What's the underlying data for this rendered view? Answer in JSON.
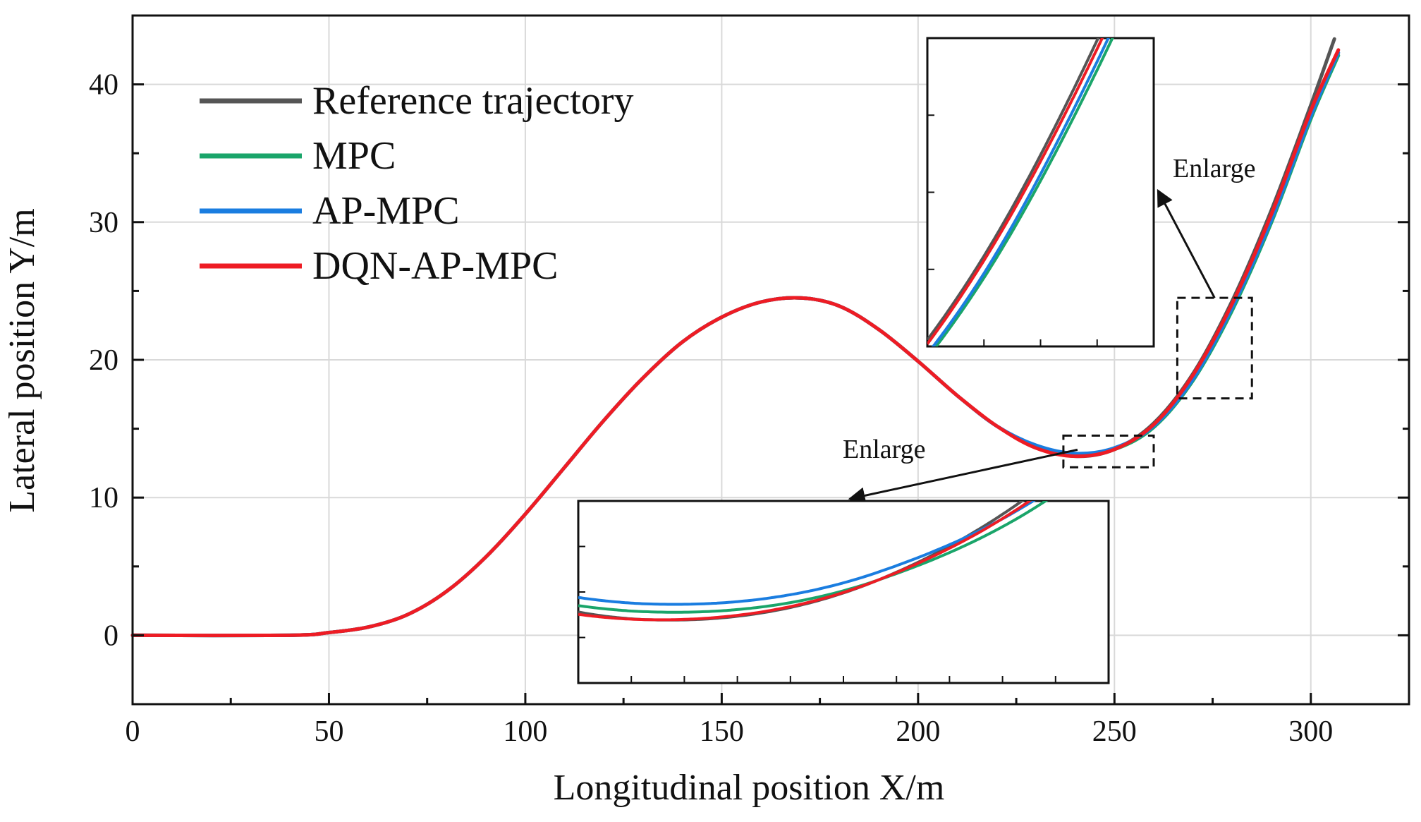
{
  "chart_data": {
    "type": "line",
    "title": "",
    "xlabel": "Longitudinal position X/m",
    "ylabel": "Lateral position Y/m",
    "xlim": [
      0,
      325
    ],
    "ylim": [
      -5,
      45
    ],
    "xticks": [
      0,
      50,
      100,
      150,
      200,
      250,
      300
    ],
    "yticks": [
      0,
      10,
      20,
      30,
      40
    ],
    "grid": true,
    "legend_position": "top-left",
    "colors": {
      "reference": "#555555",
      "mpc": "#1aa56a",
      "ap_mpc": "#1a7de0",
      "dqn_ap_mpc": "#ee1c24",
      "grid": "#d9d9d9",
      "axis": "#111111"
    },
    "series": [
      {
        "name": "Reference trajectory",
        "x": [
          0,
          40,
          50,
          60,
          70,
          80,
          90,
          100,
          110,
          120,
          130,
          140,
          150,
          160,
          170,
          180,
          190,
          200,
          210,
          220,
          230,
          240,
          250,
          260,
          270,
          280,
          290,
          300,
          306
        ],
        "y": [
          0,
          0,
          0.2,
          0.6,
          1.5,
          3.2,
          5.7,
          8.8,
          12.2,
          15.6,
          18.7,
          21.3,
          23.1,
          24.2,
          24.5,
          23.9,
          22.2,
          19.9,
          17.4,
          15.2,
          13.7,
          13.0,
          13.5,
          15.4,
          19.0,
          24.3,
          30.9,
          38.5,
          43.3
        ]
      },
      {
        "name": "MPC",
        "x": [
          0,
          40,
          50,
          60,
          70,
          80,
          90,
          100,
          110,
          120,
          130,
          140,
          150,
          160,
          170,
          180,
          190,
          200,
          210,
          220,
          230,
          240,
          250,
          260,
          270,
          280,
          290,
          300,
          307
        ],
        "y": [
          0,
          0,
          0.2,
          0.6,
          1.5,
          3.2,
          5.7,
          8.8,
          12.2,
          15.6,
          18.7,
          21.3,
          23.1,
          24.2,
          24.5,
          23.9,
          22.2,
          19.9,
          17.4,
          15.2,
          13.7,
          13.1,
          13.5,
          15.1,
          18.5,
          23.6,
          30.0,
          37.5,
          42.1
        ]
      },
      {
        "name": "AP-MPC",
        "x": [
          0,
          40,
          50,
          60,
          70,
          80,
          90,
          100,
          110,
          120,
          130,
          140,
          150,
          160,
          170,
          180,
          190,
          200,
          210,
          220,
          230,
          240,
          250,
          260,
          270,
          280,
          290,
          300,
          307
        ],
        "y": [
          0,
          0,
          0.2,
          0.6,
          1.5,
          3.2,
          5.7,
          8.8,
          12.2,
          15.6,
          18.7,
          21.3,
          23.1,
          24.2,
          24.5,
          23.9,
          22.2,
          19.9,
          17.4,
          15.2,
          13.8,
          13.2,
          13.6,
          15.2,
          18.6,
          23.8,
          30.2,
          37.7,
          42.3
        ]
      },
      {
        "name": "DQN-AP-MPC",
        "x": [
          0,
          40,
          50,
          60,
          70,
          80,
          90,
          100,
          110,
          120,
          130,
          140,
          150,
          160,
          170,
          180,
          190,
          200,
          210,
          220,
          230,
          240,
          250,
          260,
          270,
          280,
          290,
          300,
          307
        ],
        "y": [
          0,
          0,
          0.2,
          0.6,
          1.5,
          3.2,
          5.7,
          8.8,
          12.2,
          15.6,
          18.7,
          21.3,
          23.1,
          24.2,
          24.5,
          23.9,
          22.2,
          19.9,
          17.4,
          15.2,
          13.6,
          13.0,
          13.5,
          15.3,
          18.9,
          24.1,
          30.6,
          38.1,
          42.5
        ]
      }
    ],
    "zoom_regions": [
      {
        "xlim": [
          237,
          260
        ],
        "ylim": [
          12.2,
          14.5
        ]
      },
      {
        "xlim": [
          266,
          285
        ],
        "ylim": [
          17.2,
          24.5
        ]
      }
    ],
    "annotations": [
      {
        "text": "Enlarge",
        "target": "upper inset"
      },
      {
        "text": "Enlarge",
        "target": "lower inset"
      }
    ]
  }
}
